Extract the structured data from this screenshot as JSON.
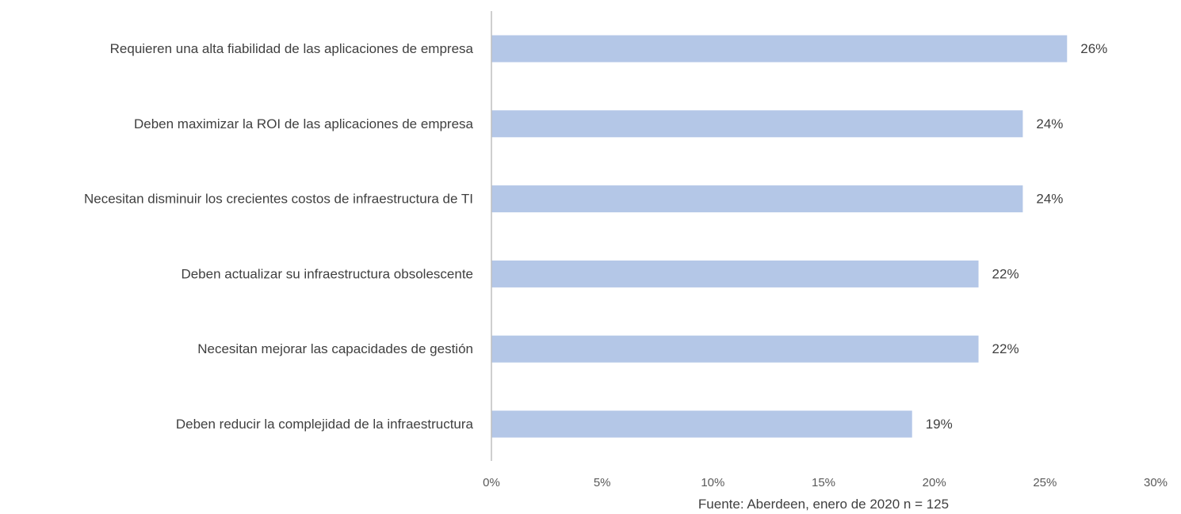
{
  "chart_data": {
    "type": "bar",
    "orientation": "horizontal",
    "categories": [
      "Requieren una alta fiabilidad de las aplicaciones de empresa",
      "Deben maximizar la ROI de las aplicaciones de empresa",
      "Necesitan disminuir los crecientes costos de infraestructura de TI",
      "Deben actualizar su infraestructura obsolescente",
      "Necesitan mejorar las capacidades de gestión",
      "Deben reducir la complejidad de la infraestructura"
    ],
    "values": [
      26,
      24,
      24,
      22,
      22,
      19
    ],
    "data_labels": [
      "26%",
      "24%",
      "24%",
      "22%",
      "22%",
      "19%"
    ],
    "xlim": [
      0,
      30
    ],
    "x_ticks": [
      0,
      5,
      10,
      15,
      20,
      25,
      30
    ],
    "x_tick_labels": [
      "0%",
      "5%",
      "10%",
      "15%",
      "20%",
      "25%",
      "30%"
    ],
    "grid": false,
    "legend": "none",
    "bar_color": "#b4c7e7",
    "axis_color": "#bfbfbf"
  },
  "source_note": "Fuente: Aberdeen, enero de 2020 n = 125"
}
